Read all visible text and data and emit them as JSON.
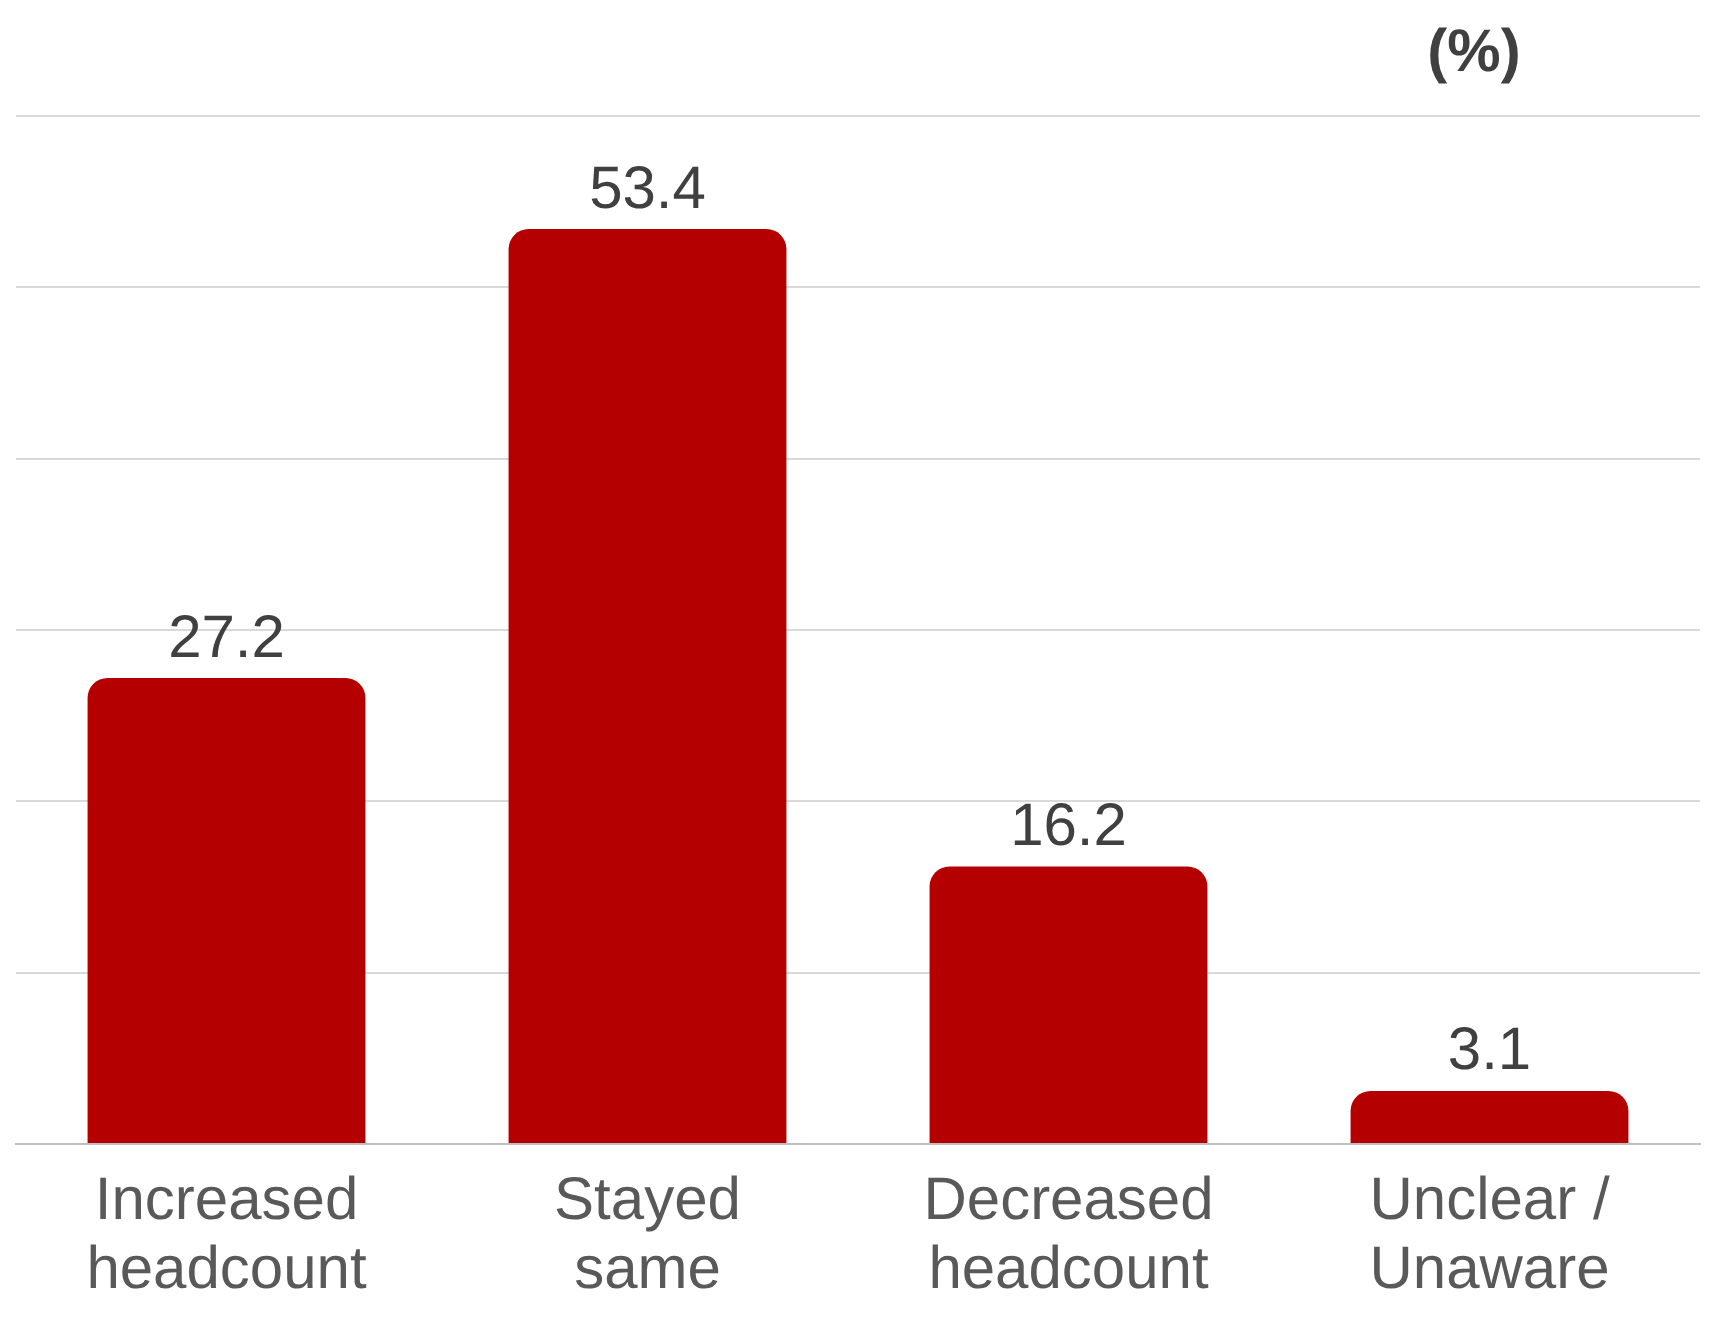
{
  "chart_data": {
    "type": "bar",
    "ylabel": "(%)",
    "categories": [
      "Increased headcount",
      "Stayed same",
      "Decreased headcount",
      "Unclear / Unaware"
    ],
    "values": [
      27.2,
      53.4,
      16.2,
      3.1
    ],
    "color": "#b50000",
    "ylim": [
      0,
      60
    ],
    "yticks": [
      {
        "value": 0,
        "label": null
      },
      {
        "value": 10,
        "label": null
      },
      {
        "value": 20,
        "label": null
      },
      {
        "value": 30,
        "label": null
      },
      {
        "value": 40,
        "label": null
      },
      {
        "value": 50,
        "label": null
      },
      {
        "value": 60,
        "label": null
      }
    ],
    "tick_labels": "x",
    "grid": "y",
    "data_labels": true,
    "legend": false
  }
}
